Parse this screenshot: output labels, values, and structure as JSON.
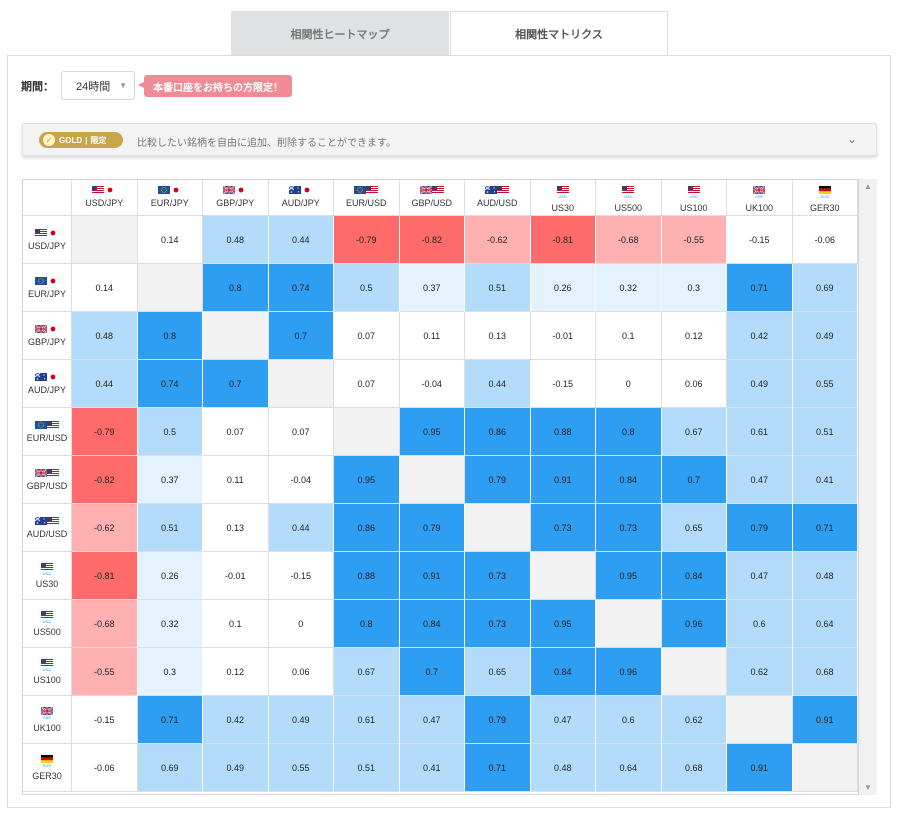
{
  "tabs": {
    "heatmap": "相関性ヒートマップ",
    "matrix": "相関性マトリクス"
  },
  "period": {
    "label": "期間：",
    "value": "24時間"
  },
  "promo": "本番口座をお持ちの方限定！",
  "gold": {
    "badge": "GOLD",
    "badge_limited": "限定",
    "text": "比較したい銘柄を自由に追加、削除することができます。"
  },
  "colors": {
    "strong_positive": "#2e9ef2",
    "positive": "#b3dcfb",
    "weak_positive": "#e3f2fd",
    "neutral": "#ffffff",
    "negative": "#ffb0b0",
    "strong_negative": "#ff6b6b",
    "diagonal": "#f2f2f2"
  },
  "symbols": [
    {
      "name": "USD/JPY",
      "flags": [
        "us",
        "jp"
      ],
      "sub": ""
    },
    {
      "name": "EUR/JPY",
      "flags": [
        "eu",
        "jp"
      ],
      "sub": ""
    },
    {
      "name": "GBP/JPY",
      "flags": [
        "gb",
        "jp"
      ],
      "sub": ""
    },
    {
      "name": "AUD/JPY",
      "flags": [
        "au",
        "jp"
      ],
      "sub": ""
    },
    {
      "name": "EUR/USD",
      "flags": [
        "eu",
        "us"
      ],
      "sub": ""
    },
    {
      "name": "GBP/USD",
      "flags": [
        "gb",
        "us"
      ],
      "sub": ""
    },
    {
      "name": "AUD/USD",
      "flags": [
        "au",
        "us"
      ],
      "sub": ""
    },
    {
      "name": "US30",
      "flags": [
        "us"
      ],
      "sub": "USD"
    },
    {
      "name": "US500",
      "flags": [
        "us"
      ],
      "sub": "USD"
    },
    {
      "name": "US100",
      "flags": [
        "us"
      ],
      "sub": "USD"
    },
    {
      "name": "UK100",
      "flags": [
        "gb"
      ],
      "sub": "GBP"
    },
    {
      "name": "GER30",
      "flags": [
        "de"
      ],
      "sub": "EUR"
    }
  ],
  "matrix": [
    [
      null,
      "0.14",
      "0.48",
      "0.44",
      "-0.79",
      "-0.82",
      "-0.62",
      "-0.81",
      "-0.68",
      "-0.55",
      "-0.15",
      "-0.06"
    ],
    [
      "0.14",
      null,
      "0.8",
      "0.74",
      "0.5",
      "0.37",
      "0.51",
      "0.26",
      "0.32",
      "0.3",
      "0.71",
      "0.69"
    ],
    [
      "0.48",
      "0.8",
      null,
      "0.7",
      "0.07",
      "0.11",
      "0.13",
      "-0.01",
      "0.1",
      "0.12",
      "0.42",
      "0.49"
    ],
    [
      "0.44",
      "0.74",
      "0.7",
      null,
      "0.07",
      "-0.04",
      "0.44",
      "-0.15",
      "0",
      "0.06",
      "0.49",
      "0.55"
    ],
    [
      "-0.79",
      "0.5",
      "0.07",
      "0.07",
      null,
      "0.95",
      "0.86",
      "0.88",
      "0.8",
      "0.67",
      "0.61",
      "0.51"
    ],
    [
      "-0.82",
      "0.37",
      "0.11",
      "-0.04",
      "0.95",
      null,
      "0.79",
      "0.91",
      "0.84",
      "0.7",
      "0.47",
      "0.41"
    ],
    [
      "-0.62",
      "0.51",
      "0.13",
      "0.44",
      "0.86",
      "0.79",
      null,
      "0.73",
      "0.73",
      "0.65",
      "0.79",
      "0.71"
    ],
    [
      "-0.81",
      "0.26",
      "-0.01",
      "-0.15",
      "0.88",
      "0.91",
      "0.73",
      null,
      "0.95",
      "0.84",
      "0.47",
      "0.48"
    ],
    [
      "-0.68",
      "0.32",
      "0.1",
      "0",
      "0.8",
      "0.84",
      "0.73",
      "0.95",
      null,
      "0.96",
      "0.6",
      "0.64"
    ],
    [
      "-0.55",
      "0.3",
      "0.12",
      "0.06",
      "0.67",
      "0.7",
      "0.65",
      "0.84",
      "0.96",
      null,
      "0.62",
      "0.68"
    ],
    [
      "-0.15",
      "0.71",
      "0.42",
      "0.49",
      "0.61",
      "0.47",
      "0.79",
      "0.47",
      "0.6",
      "0.62",
      null,
      "0.91"
    ],
    [
      "-0.06",
      "0.69",
      "0.49",
      "0.55",
      "0.51",
      "0.41",
      "0.71",
      "0.48",
      "0.64",
      "0.68",
      "0.91",
      null
    ]
  ]
}
